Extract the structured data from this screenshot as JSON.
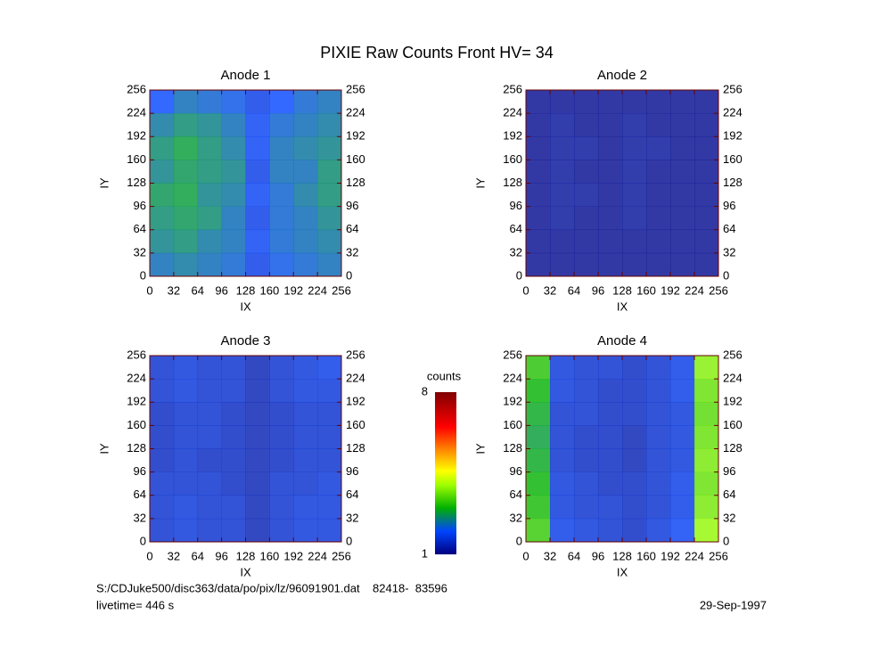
{
  "title": "PIXIE Raw Counts Front HV= 34",
  "chart_data": [
    {
      "type": "heatmap",
      "title": "Anode 1",
      "x_label": "IX",
      "y_label": "IY",
      "xlim": [
        0,
        256
      ],
      "ylim": [
        0,
        256
      ],
      "xticks": [
        0,
        32,
        64,
        96,
        128,
        160,
        192,
        224,
        256
      ],
      "yticks": [
        0,
        32,
        64,
        96,
        128,
        160,
        192,
        224,
        256
      ],
      "values": [
        [
          2.0,
          2.3,
          2.2,
          2.1,
          1.8,
          2.0,
          2.2,
          2.3
        ],
        [
          2.4,
          2.6,
          2.5,
          2.3,
          1.9,
          2.2,
          2.3,
          2.4
        ],
        [
          2.6,
          2.8,
          2.6,
          2.4,
          1.9,
          2.3,
          2.4,
          2.5
        ],
        [
          2.5,
          2.7,
          2.6,
          2.5,
          1.8,
          2.3,
          2.3,
          2.6
        ],
        [
          2.7,
          2.8,
          2.5,
          2.4,
          1.9,
          2.2,
          2.4,
          2.6
        ],
        [
          2.6,
          2.7,
          2.6,
          2.3,
          1.8,
          2.2,
          2.3,
          2.5
        ],
        [
          2.5,
          2.6,
          2.4,
          2.3,
          1.9,
          2.2,
          2.3,
          2.4
        ],
        [
          2.3,
          2.4,
          2.3,
          2.2,
          1.8,
          2.1,
          2.2,
          2.3
        ]
      ]
    },
    {
      "type": "heatmap",
      "title": "Anode 2",
      "x_label": "IX",
      "y_label": "IY",
      "xlim": [
        0,
        256
      ],
      "ylim": [
        0,
        256
      ],
      "xticks": [
        0,
        32,
        64,
        96,
        128,
        160,
        192,
        224,
        256
      ],
      "yticks": [
        0,
        32,
        64,
        96,
        128,
        160,
        192,
        224,
        256
      ],
      "values": [
        [
          1.1,
          1.1,
          1.1,
          1.1,
          1.1,
          1.1,
          1.1,
          1.1
        ],
        [
          1.1,
          1.2,
          1.1,
          1.1,
          1.2,
          1.1,
          1.1,
          1.1
        ],
        [
          1.1,
          1.2,
          1.2,
          1.1,
          1.2,
          1.2,
          1.1,
          1.1
        ],
        [
          1.1,
          1.2,
          1.1,
          1.1,
          1.2,
          1.1,
          1.1,
          1.1
        ],
        [
          1.1,
          1.2,
          1.2,
          1.1,
          1.2,
          1.1,
          1.1,
          1.1
        ],
        [
          1.1,
          1.2,
          1.1,
          1.1,
          1.2,
          1.1,
          1.1,
          1.1
        ],
        [
          1.1,
          1.1,
          1.1,
          1.1,
          1.1,
          1.1,
          1.1,
          1.1
        ],
        [
          1.1,
          1.1,
          1.1,
          1.1,
          1.1,
          1.1,
          1.1,
          1.1
        ]
      ]
    },
    {
      "type": "heatmap",
      "title": "Anode 3",
      "x_label": "IX",
      "y_label": "IY",
      "xlim": [
        0,
        256
      ],
      "ylim": [
        0,
        256
      ],
      "xticks": [
        0,
        32,
        64,
        96,
        128,
        160,
        192,
        224,
        256
      ],
      "yticks": [
        0,
        32,
        64,
        96,
        128,
        160,
        192,
        224,
        256
      ],
      "values": [
        [
          1.6,
          1.7,
          1.6,
          1.6,
          1.4,
          1.6,
          1.7,
          1.8
        ],
        [
          1.6,
          1.7,
          1.6,
          1.6,
          1.4,
          1.6,
          1.7,
          1.7
        ],
        [
          1.5,
          1.6,
          1.6,
          1.5,
          1.4,
          1.5,
          1.6,
          1.6
        ],
        [
          1.5,
          1.6,
          1.6,
          1.5,
          1.4,
          1.5,
          1.6,
          1.6
        ],
        [
          1.5,
          1.6,
          1.5,
          1.5,
          1.4,
          1.5,
          1.6,
          1.6
        ],
        [
          1.6,
          1.6,
          1.6,
          1.5,
          1.4,
          1.6,
          1.6,
          1.7
        ],
        [
          1.6,
          1.7,
          1.6,
          1.6,
          1.4,
          1.6,
          1.7,
          1.7
        ],
        [
          1.6,
          1.7,
          1.6,
          1.6,
          1.4,
          1.6,
          1.7,
          1.7
        ]
      ]
    },
    {
      "type": "heatmap",
      "title": "Anode 4",
      "x_label": "IX",
      "y_label": "IY",
      "xlim": [
        0,
        256
      ],
      "ylim": [
        0,
        256
      ],
      "xticks": [
        0,
        32,
        64,
        96,
        128,
        160,
        192,
        224,
        256
      ],
      "yticks": [
        0,
        32,
        64,
        96,
        128,
        160,
        192,
        224,
        256
      ],
      "values": [
        [
          3.2,
          1.7,
          1.6,
          1.6,
          1.5,
          1.6,
          1.8,
          3.8
        ],
        [
          3.0,
          1.7,
          1.6,
          1.5,
          1.5,
          1.6,
          1.8,
          3.6
        ],
        [
          2.9,
          1.6,
          1.6,
          1.5,
          1.5,
          1.6,
          1.7,
          3.5
        ],
        [
          2.8,
          1.6,
          1.5,
          1.5,
          1.4,
          1.6,
          1.7,
          3.6
        ],
        [
          2.9,
          1.6,
          1.5,
          1.5,
          1.4,
          1.6,
          1.7,
          3.7
        ],
        [
          3.0,
          1.7,
          1.6,
          1.5,
          1.5,
          1.6,
          1.8,
          3.6
        ],
        [
          3.1,
          1.7,
          1.6,
          1.6,
          1.5,
          1.6,
          1.8,
          3.7
        ],
        [
          3.3,
          1.8,
          1.7,
          1.6,
          1.5,
          1.7,
          1.9,
          3.9
        ]
      ]
    }
  ],
  "colorbar": {
    "title": "counts",
    "range": [
      1,
      8
    ],
    "ticks": [
      1,
      8
    ],
    "colorscale": [
      [
        1,
        "#000080"
      ],
      [
        2,
        "#0044ff"
      ],
      [
        3,
        "#00b000"
      ],
      [
        4,
        "#a0ff00"
      ],
      [
        4.6,
        "#ffff00"
      ],
      [
        5.5,
        "#ff8800"
      ],
      [
        6.5,
        "#ff0000"
      ],
      [
        8,
        "#800000"
      ]
    ]
  },
  "footer": {
    "file": "S:/CDJuke500/disc363/data/po/pix/lz/96091901.dat    82418-  83596",
    "livetime": "livetime= 446 s",
    "date": "29-Sep-1997"
  }
}
